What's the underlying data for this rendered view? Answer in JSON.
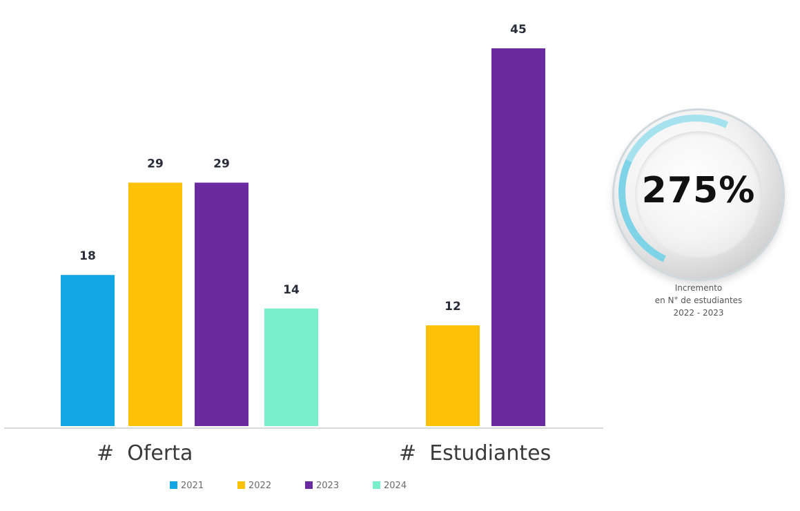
{
  "chart_data": {
    "type": "bar",
    "title": "",
    "xlabel": "",
    "ylabel": "",
    "ylim": [
      0,
      48
    ],
    "grid": false,
    "legend_position": "bottom",
    "groups": [
      {
        "label": "#  Oferta",
        "bars": [
          {
            "series": "2021",
            "value": 18
          },
          {
            "series": "2022",
            "value": 29
          },
          {
            "series": "2023",
            "value": 29
          },
          {
            "series": "2024",
            "value": 14
          }
        ]
      },
      {
        "label": "#  Estudiantes",
        "bars": [
          {
            "series": "2022",
            "value": 12
          },
          {
            "series": "2023",
            "value": 45
          }
        ]
      }
    ],
    "series": [
      {
        "name": "2021",
        "color": "#13a6e4"
      },
      {
        "name": "2022",
        "color": "#ffc107"
      },
      {
        "name": "2023",
        "color": "#6a2aa0"
      },
      {
        "name": "2024",
        "color": "#79efc9"
      }
    ]
  },
  "badge": {
    "value": "275%",
    "caption": [
      "Incremento",
      "en N° de estudiantes",
      "2022 - 2023"
    ]
  }
}
